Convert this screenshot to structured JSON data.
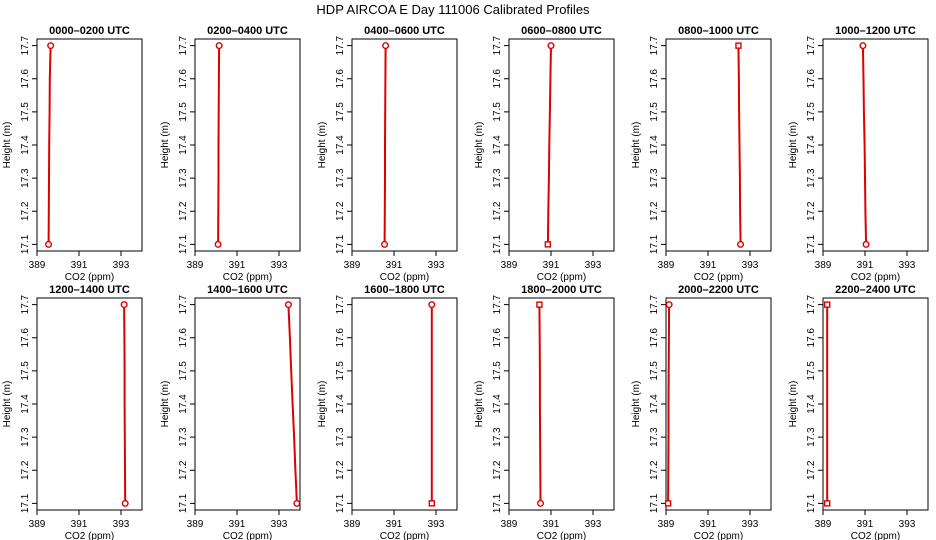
{
  "title": "HDP AIRCOA E  Day 111006  Calibrated Profiles",
  "colors": {
    "series": "#dd0000",
    "axes": "#000000",
    "background": "#ffffff"
  },
  "chart_data": [
    {
      "type": "line",
      "title": "0000–0200 UTC",
      "xlabel": "CO2 (ppm)",
      "ylabel": "Height (m)",
      "xlim": [
        389,
        394
      ],
      "ylim": [
        17.08,
        17.72
      ],
      "xticks": [
        389,
        391,
        393
      ],
      "yticks": [
        17.1,
        17.2,
        17.3,
        17.4,
        17.5,
        17.6,
        17.7
      ],
      "grid": false,
      "markers": [
        {
          "x": 389.55,
          "y": 17.1,
          "shape": "circle"
        },
        {
          "x": 389.65,
          "y": 17.7,
          "shape": "circle"
        }
      ],
      "series": [
        {
          "points": [
            {
              "x": 389.55,
              "y": 17.1
            },
            {
              "x": 389.56,
              "y": 17.2
            },
            {
              "x": 389.57,
              "y": 17.3
            },
            {
              "x": 389.58,
              "y": 17.4
            },
            {
              "x": 389.6,
              "y": 17.5
            },
            {
              "x": 389.61,
              "y": 17.6
            },
            {
              "x": 389.65,
              "y": 17.7
            }
          ]
        }
      ]
    },
    {
      "type": "line",
      "title": "0200–0400 UTC",
      "xlabel": "CO2 (ppm)",
      "ylabel": "Height (m)",
      "xlim": [
        389,
        394
      ],
      "ylim": [
        17.08,
        17.72
      ],
      "xticks": [
        389,
        391,
        393
      ],
      "yticks": [
        17.1,
        17.2,
        17.3,
        17.4,
        17.5,
        17.6,
        17.7
      ],
      "grid": false,
      "markers": [
        {
          "x": 390.1,
          "y": 17.1,
          "shape": "circle"
        },
        {
          "x": 390.15,
          "y": 17.7,
          "shape": "circle"
        }
      ],
      "series": [
        {
          "points": [
            {
              "x": 390.1,
              "y": 17.1
            },
            {
              "x": 390.11,
              "y": 17.2
            },
            {
              "x": 390.12,
              "y": 17.3
            },
            {
              "x": 390.12,
              "y": 17.4
            },
            {
              "x": 390.13,
              "y": 17.5
            },
            {
              "x": 390.14,
              "y": 17.6
            },
            {
              "x": 390.15,
              "y": 17.7
            }
          ]
        }
      ]
    },
    {
      "type": "line",
      "title": "0400–0600 UTC",
      "xlabel": "CO2 (ppm)",
      "ylabel": "Height (m)",
      "xlim": [
        389,
        394
      ],
      "ylim": [
        17.08,
        17.72
      ],
      "xticks": [
        389,
        391,
        393
      ],
      "yticks": [
        17.1,
        17.2,
        17.3,
        17.4,
        17.5,
        17.6,
        17.7
      ],
      "grid": false,
      "markers": [
        {
          "x": 390.55,
          "y": 17.1,
          "shape": "circle"
        },
        {
          "x": 390.6,
          "y": 17.7,
          "shape": "circle"
        }
      ],
      "series": [
        {
          "points": [
            {
              "x": 390.55,
              "y": 17.1
            },
            {
              "x": 390.56,
              "y": 17.2
            },
            {
              "x": 390.57,
              "y": 17.3
            },
            {
              "x": 390.57,
              "y": 17.4
            },
            {
              "x": 390.58,
              "y": 17.5
            },
            {
              "x": 390.59,
              "y": 17.6
            },
            {
              "x": 390.6,
              "y": 17.7
            }
          ]
        }
      ]
    },
    {
      "type": "line",
      "title": "0600–0800 UTC",
      "xlabel": "CO2 (ppm)",
      "ylabel": "Height (m)",
      "xlim": [
        389,
        394
      ],
      "ylim": [
        17.08,
        17.72
      ],
      "xticks": [
        389,
        391,
        393
      ],
      "yticks": [
        17.1,
        17.2,
        17.3,
        17.4,
        17.5,
        17.6,
        17.7
      ],
      "grid": false,
      "markers": [
        {
          "x": 390.85,
          "y": 17.1,
          "shape": "square"
        },
        {
          "x": 391.0,
          "y": 17.7,
          "shape": "circle"
        }
      ],
      "series": [
        {
          "points": [
            {
              "x": 390.85,
              "y": 17.1
            },
            {
              "x": 390.87,
              "y": 17.2
            },
            {
              "x": 390.9,
              "y": 17.3
            },
            {
              "x": 390.92,
              "y": 17.4
            },
            {
              "x": 390.95,
              "y": 17.5
            },
            {
              "x": 390.97,
              "y": 17.6
            },
            {
              "x": 391.0,
              "y": 17.7
            }
          ]
        }
      ]
    },
    {
      "type": "line",
      "title": "0800–1000 UTC",
      "xlabel": "CO2 (ppm)",
      "ylabel": "Height (m)",
      "xlim": [
        389,
        394
      ],
      "ylim": [
        17.08,
        17.72
      ],
      "xticks": [
        389,
        391,
        393
      ],
      "yticks": [
        17.1,
        17.2,
        17.3,
        17.4,
        17.5,
        17.6,
        17.7
      ],
      "grid": false,
      "markers": [
        {
          "x": 392.55,
          "y": 17.1,
          "shape": "circle"
        },
        {
          "x": 392.45,
          "y": 17.7,
          "shape": "square"
        }
      ],
      "series": [
        {
          "points": [
            {
              "x": 392.55,
              "y": 17.1
            },
            {
              "x": 392.53,
              "y": 17.2
            },
            {
              "x": 392.52,
              "y": 17.3
            },
            {
              "x": 392.5,
              "y": 17.4
            },
            {
              "x": 392.48,
              "y": 17.5
            },
            {
              "x": 392.47,
              "y": 17.6
            },
            {
              "x": 392.45,
              "y": 17.7
            }
          ]
        }
      ]
    },
    {
      "type": "line",
      "title": "1000–1200 UTC",
      "xlabel": "CO2 (ppm)",
      "ylabel": "Height (m)",
      "xlim": [
        389,
        394
      ],
      "ylim": [
        17.08,
        17.72
      ],
      "xticks": [
        389,
        391,
        393
      ],
      "yticks": [
        17.1,
        17.2,
        17.3,
        17.4,
        17.5,
        17.6,
        17.7
      ],
      "grid": false,
      "markers": [
        {
          "x": 391.05,
          "y": 17.1,
          "shape": "circle"
        },
        {
          "x": 390.9,
          "y": 17.7,
          "shape": "circle"
        }
      ],
      "series": [
        {
          "points": [
            {
              "x": 391.05,
              "y": 17.1
            },
            {
              "x": 391.02,
              "y": 17.2
            },
            {
              "x": 391.0,
              "y": 17.3
            },
            {
              "x": 390.98,
              "y": 17.4
            },
            {
              "x": 390.95,
              "y": 17.5
            },
            {
              "x": 390.93,
              "y": 17.6
            },
            {
              "x": 390.9,
              "y": 17.7
            }
          ]
        }
      ]
    },
    {
      "type": "line",
      "title": "1200–1400 UTC",
      "xlabel": "CO2 (ppm)",
      "ylabel": "Height (m)",
      "xlim": [
        389,
        394
      ],
      "ylim": [
        17.08,
        17.72
      ],
      "xticks": [
        389,
        391,
        393
      ],
      "yticks": [
        17.1,
        17.2,
        17.3,
        17.4,
        17.5,
        17.6,
        17.7
      ],
      "grid": false,
      "markers": [
        {
          "x": 393.2,
          "y": 17.1,
          "shape": "circle"
        },
        {
          "x": 393.15,
          "y": 17.7,
          "shape": "circle"
        }
      ],
      "series": [
        {
          "points": [
            {
              "x": 393.2,
              "y": 17.1
            },
            {
              "x": 393.19,
              "y": 17.2
            },
            {
              "x": 393.18,
              "y": 17.3
            },
            {
              "x": 393.17,
              "y": 17.4
            },
            {
              "x": 393.17,
              "y": 17.5
            },
            {
              "x": 393.16,
              "y": 17.6
            },
            {
              "x": 393.15,
              "y": 17.7
            }
          ]
        }
      ]
    },
    {
      "type": "line",
      "title": "1400–1600 UTC",
      "xlabel": "CO2 (ppm)",
      "ylabel": "Height (m)",
      "xlim": [
        389,
        394
      ],
      "ylim": [
        17.08,
        17.72
      ],
      "xticks": [
        389,
        391,
        393
      ],
      "yticks": [
        17.1,
        17.2,
        17.3,
        17.4,
        17.5,
        17.6,
        17.7
      ],
      "grid": false,
      "markers": [
        {
          "x": 393.85,
          "y": 17.1,
          "shape": "circle"
        },
        {
          "x": 393.45,
          "y": 17.7,
          "shape": "circle"
        }
      ],
      "series": [
        {
          "points": [
            {
              "x": 393.85,
              "y": 17.1
            },
            {
              "x": 393.78,
              "y": 17.2
            },
            {
              "x": 393.72,
              "y": 17.3
            },
            {
              "x": 393.65,
              "y": 17.4
            },
            {
              "x": 393.58,
              "y": 17.5
            },
            {
              "x": 393.52,
              "y": 17.6
            },
            {
              "x": 393.45,
              "y": 17.7
            }
          ]
        }
      ]
    },
    {
      "type": "line",
      "title": "1600–1800 UTC",
      "xlabel": "CO2 (ppm)",
      "ylabel": "Height (m)",
      "xlim": [
        389,
        394
      ],
      "ylim": [
        17.08,
        17.72
      ],
      "xticks": [
        389,
        391,
        393
      ],
      "yticks": [
        17.1,
        17.2,
        17.3,
        17.4,
        17.5,
        17.6,
        17.7
      ],
      "grid": false,
      "markers": [
        {
          "x": 392.8,
          "y": 17.1,
          "shape": "square"
        },
        {
          "x": 392.8,
          "y": 17.7,
          "shape": "circle"
        }
      ],
      "series": [
        {
          "points": [
            {
              "x": 392.8,
              "y": 17.1
            },
            {
              "x": 392.8,
              "y": 17.2
            },
            {
              "x": 392.8,
              "y": 17.3
            },
            {
              "x": 392.8,
              "y": 17.4
            },
            {
              "x": 392.8,
              "y": 17.5
            },
            {
              "x": 392.8,
              "y": 17.6
            },
            {
              "x": 392.8,
              "y": 17.7
            }
          ]
        }
      ]
    },
    {
      "type": "line",
      "title": "1800–2000 UTC",
      "xlabel": "CO2 (ppm)",
      "ylabel": "Height (m)",
      "xlim": [
        389,
        394
      ],
      "ylim": [
        17.08,
        17.72
      ],
      "xticks": [
        389,
        391,
        393
      ],
      "yticks": [
        17.1,
        17.2,
        17.3,
        17.4,
        17.5,
        17.6,
        17.7
      ],
      "grid": false,
      "markers": [
        {
          "x": 390.5,
          "y": 17.1,
          "shape": "circle"
        },
        {
          "x": 390.45,
          "y": 17.7,
          "shape": "square"
        }
      ],
      "series": [
        {
          "points": [
            {
              "x": 390.5,
              "y": 17.1
            },
            {
              "x": 390.49,
              "y": 17.2
            },
            {
              "x": 390.48,
              "y": 17.3
            },
            {
              "x": 390.47,
              "y": 17.4
            },
            {
              "x": 390.47,
              "y": 17.5
            },
            {
              "x": 390.46,
              "y": 17.6
            },
            {
              "x": 390.45,
              "y": 17.7
            }
          ]
        }
      ]
    },
    {
      "type": "line",
      "title": "2000–2200 UTC",
      "xlabel": "CO2 (ppm)",
      "ylabel": "Height (m)",
      "xlim": [
        389,
        394
      ],
      "ylim": [
        17.08,
        17.72
      ],
      "xticks": [
        389,
        391,
        393
      ],
      "yticks": [
        17.1,
        17.2,
        17.3,
        17.4,
        17.5,
        17.6,
        17.7
      ],
      "grid": false,
      "markers": [
        {
          "x": 389.1,
          "y": 17.1,
          "shape": "square"
        },
        {
          "x": 389.15,
          "y": 17.7,
          "shape": "circle"
        }
      ],
      "series": [
        {
          "points": [
            {
              "x": 389.1,
              "y": 17.1
            },
            {
              "x": 389.11,
              "y": 17.2
            },
            {
              "x": 389.12,
              "y": 17.3
            },
            {
              "x": 389.12,
              "y": 17.4
            },
            {
              "x": 389.13,
              "y": 17.5
            },
            {
              "x": 389.14,
              "y": 17.6
            },
            {
              "x": 389.15,
              "y": 17.7
            }
          ]
        }
      ]
    },
    {
      "type": "line",
      "title": "2200–2400 UTC",
      "xlabel": "CO2 (ppm)",
      "ylabel": "Height (m)",
      "xlim": [
        389,
        394
      ],
      "ylim": [
        17.08,
        17.72
      ],
      "xticks": [
        389,
        391,
        393
      ],
      "yticks": [
        17.1,
        17.2,
        17.3,
        17.4,
        17.5,
        17.6,
        17.7
      ],
      "grid": false,
      "markers": [
        {
          "x": 389.2,
          "y": 17.1,
          "shape": "square"
        },
        {
          "x": 389.2,
          "y": 17.7,
          "shape": "square"
        }
      ],
      "series": [
        {
          "points": [
            {
              "x": 389.2,
              "y": 17.1
            },
            {
              "x": 389.2,
              "y": 17.2
            },
            {
              "x": 389.2,
              "y": 17.3
            },
            {
              "x": 389.2,
              "y": 17.4
            },
            {
              "x": 389.2,
              "y": 17.5
            },
            {
              "x": 389.2,
              "y": 17.6
            },
            {
              "x": 389.2,
              "y": 17.7
            }
          ]
        }
      ]
    }
  ]
}
